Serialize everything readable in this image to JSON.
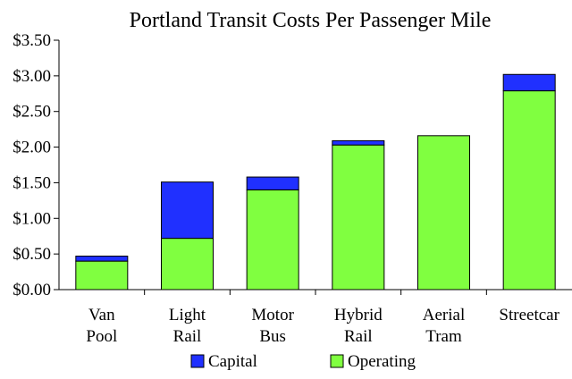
{
  "chart_data": {
    "type": "bar",
    "stacked": true,
    "title": "Portland Transit Costs Per Passenger Mile",
    "categories": [
      [
        "Van",
        "Pool"
      ],
      [
        "Light",
        "Rail"
      ],
      [
        "Motor",
        "Bus"
      ],
      [
        "Hybrid",
        "Rail"
      ],
      [
        "Aerial",
        "Tram"
      ],
      [
        "Streetcar"
      ]
    ],
    "series": [
      {
        "name": "Operating",
        "color": "#80ff40",
        "values": [
          0.4,
          0.72,
          1.4,
          2.03,
          2.16,
          2.79
        ]
      },
      {
        "name": "Capital",
        "color": "#2030ff",
        "values": [
          0.07,
          0.79,
          0.18,
          0.06,
          0.0,
          0.23
        ]
      }
    ],
    "ylim": [
      0,
      3.5
    ],
    "yticks": [
      "$0.00",
      "$0.50",
      "$1.00",
      "$1.50",
      "$2.00",
      "$2.50",
      "$3.00",
      "$3.50"
    ],
    "ytick_values": [
      0,
      0.5,
      1.0,
      1.5,
      2.0,
      2.5,
      3.0,
      3.5
    ],
    "legend": [
      "Capital",
      "Operating"
    ],
    "legend_position": "bottom",
    "grid": false
  }
}
